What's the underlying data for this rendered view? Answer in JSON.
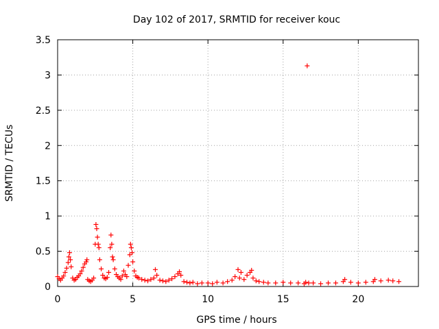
{
  "chart_data": {
    "type": "scatter",
    "title": "Day 102 of 2017, SRMTID for receiver kouc",
    "xlabel": "GPS time / hours",
    "ylabel": "SRMTID / TECUs",
    "xlim": [
      0,
      24
    ],
    "ylim": [
      0,
      3.5
    ],
    "grid": true,
    "x_ticks": [
      {
        "value": 0,
        "label": "0"
      },
      {
        "value": 5,
        "label": "5"
      },
      {
        "value": 10,
        "label": "10"
      },
      {
        "value": 15,
        "label": "15"
      },
      {
        "value": 20,
        "label": "20"
      }
    ],
    "y_ticks": [
      {
        "value": 0,
        "label": "0"
      },
      {
        "value": 0.5,
        "label": "0.5"
      },
      {
        "value": 1,
        "label": "1"
      },
      {
        "value": 1.5,
        "label": "1.5"
      },
      {
        "value": 2,
        "label": "2"
      },
      {
        "value": 2.5,
        "label": "2.5"
      },
      {
        "value": 3,
        "label": "3"
      },
      {
        "value": 3.5,
        "label": "3.5"
      }
    ],
    "marker": "+",
    "color": "#ff0000",
    "series": [
      {
        "name": "SRMTID",
        "x": [
          0.0,
          0.1,
          0.2,
          0.3,
          0.4,
          0.5,
          0.6,
          0.7,
          0.75,
          0.8,
          0.85,
          0.9,
          1.0,
          1.1,
          1.2,
          1.3,
          1.4,
          1.5,
          1.6,
          1.7,
          1.8,
          1.9,
          1.95,
          2.0,
          2.1,
          2.2,
          2.3,
          2.4,
          2.5,
          2.55,
          2.6,
          2.65,
          2.7,
          2.75,
          2.8,
          2.9,
          3.0,
          3.1,
          3.2,
          3.3,
          3.4,
          3.5,
          3.55,
          3.6,
          3.65,
          3.7,
          3.8,
          3.9,
          4.0,
          4.1,
          4.2,
          4.3,
          4.4,
          4.5,
          4.6,
          4.7,
          4.8,
          4.85,
          4.9,
          4.95,
          5.0,
          5.1,
          5.2,
          5.3,
          5.4,
          5.6,
          5.8,
          6.0,
          6.2,
          6.4,
          6.5,
          6.6,
          6.8,
          7.0,
          7.2,
          7.4,
          7.6,
          7.8,
          8.0,
          8.1,
          8.2,
          8.4,
          8.6,
          8.8,
          9.0,
          9.3,
          9.6,
          10.0,
          10.3,
          10.6,
          11.0,
          11.3,
          11.6,
          11.8,
          12.0,
          12.1,
          12.2,
          12.4,
          12.6,
          12.8,
          12.9,
          13.0,
          13.2,
          13.4,
          13.7,
          14.0,
          14.5,
          15.0,
          15.5,
          16.0,
          16.4,
          16.5,
          16.6,
          16.7,
          17.0,
          17.5,
          18.0,
          18.5,
          19.0,
          19.1,
          19.5,
          20.0,
          20.5,
          21.0,
          21.1,
          21.5,
          22.0,
          22.3,
          22.7
        ],
        "y": [
          0.14,
          0.11,
          0.09,
          0.12,
          0.15,
          0.2,
          0.26,
          0.34,
          0.42,
          0.48,
          0.38,
          0.28,
          0.12,
          0.09,
          0.1,
          0.13,
          0.15,
          0.18,
          0.22,
          0.27,
          0.32,
          0.35,
          0.38,
          0.1,
          0.08,
          0.07,
          0.09,
          0.12,
          0.6,
          0.88,
          0.82,
          0.7,
          0.6,
          0.55,
          0.38,
          0.25,
          0.16,
          0.12,
          0.11,
          0.13,
          0.2,
          0.55,
          0.73,
          0.6,
          0.42,
          0.38,
          0.25,
          0.17,
          0.14,
          0.12,
          0.1,
          0.15,
          0.22,
          0.17,
          0.14,
          0.3,
          0.45,
          0.6,
          0.55,
          0.48,
          0.35,
          0.22,
          0.15,
          0.13,
          0.12,
          0.1,
          0.09,
          0.08,
          0.1,
          0.12,
          0.24,
          0.16,
          0.09,
          0.08,
          0.07,
          0.09,
          0.11,
          0.14,
          0.18,
          0.21,
          0.16,
          0.07,
          0.06,
          0.05,
          0.06,
          0.04,
          0.05,
          0.05,
          0.04,
          0.06,
          0.05,
          0.07,
          0.09,
          0.14,
          0.24,
          0.12,
          0.2,
          0.1,
          0.16,
          0.2,
          0.23,
          0.12,
          0.08,
          0.07,
          0.06,
          0.05,
          0.05,
          0.06,
          0.05,
          0.05,
          0.04,
          0.06,
          3.13,
          0.05,
          0.05,
          0.04,
          0.05,
          0.05,
          0.07,
          0.1,
          0.06,
          0.05,
          0.06,
          0.07,
          0.1,
          0.08,
          0.09,
          0.08,
          0.07
        ]
      }
    ]
  }
}
